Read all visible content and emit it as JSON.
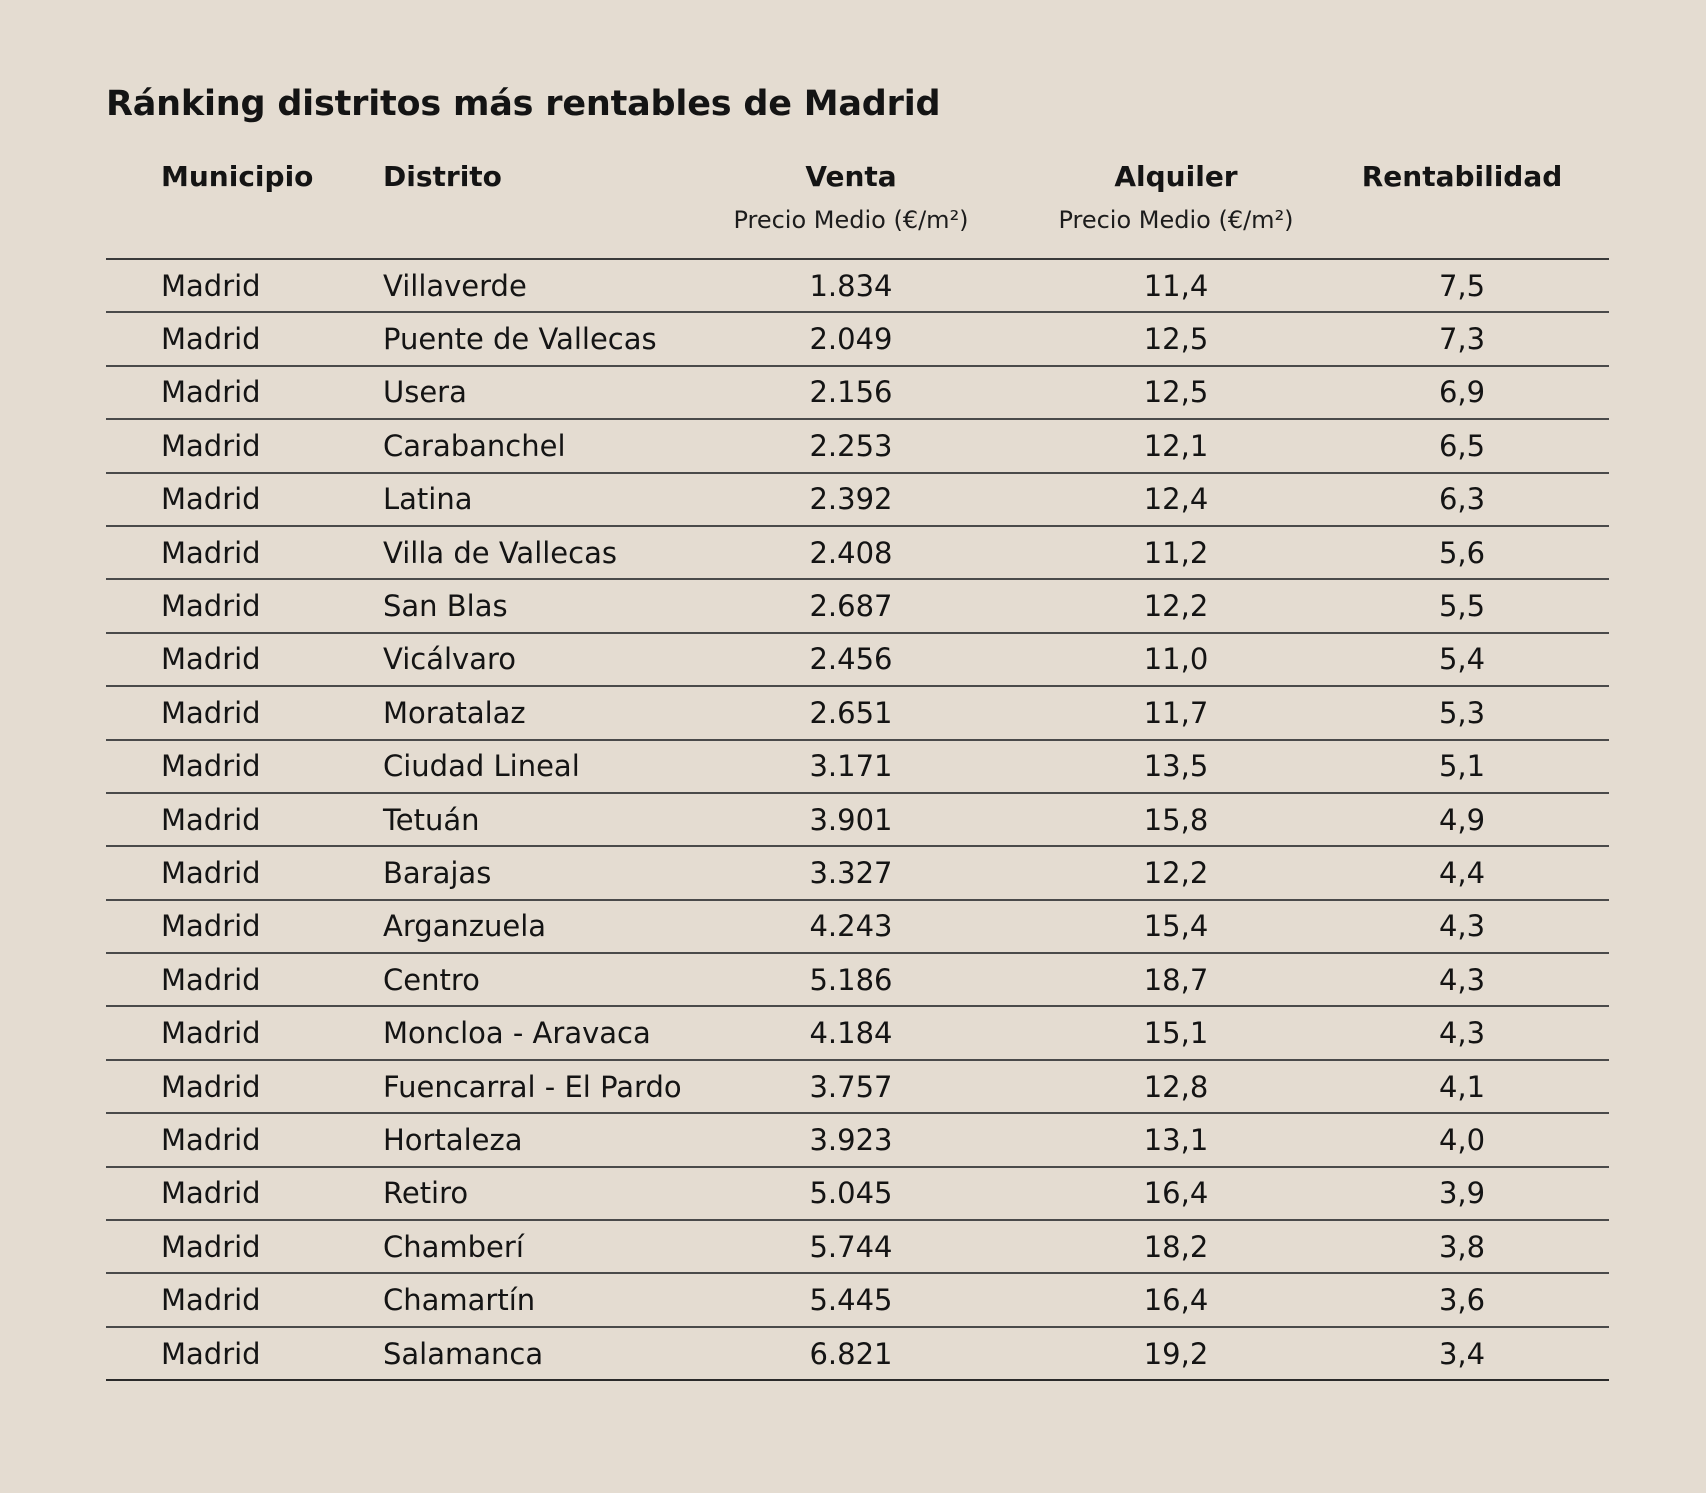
{
  "title": "Ránking distritos más rentables de Madrid",
  "headers": {
    "municipio": "Municipio",
    "distrito": "Distrito",
    "venta": "Venta",
    "venta_sub": "Precio Medio (€/m²)",
    "alquiler": "Alquiler",
    "alquiler_sub": "Precio Medio (€/m²)",
    "rentabilidad": "Rentabilidad"
  },
  "rows": [
    {
      "municipio": "Madrid",
      "distrito": "Villaverde",
      "venta": "1.834",
      "alquiler": "11,4",
      "rentabilidad": "7,5"
    },
    {
      "municipio": "Madrid",
      "distrito": "Puente de Vallecas",
      "venta": "2.049",
      "alquiler": "12,5",
      "rentabilidad": "7,3"
    },
    {
      "municipio": "Madrid",
      "distrito": "Usera",
      "venta": "2.156",
      "alquiler": "12,5",
      "rentabilidad": "6,9"
    },
    {
      "municipio": "Madrid",
      "distrito": "Carabanchel",
      "venta": "2.253",
      "alquiler": "12,1",
      "rentabilidad": "6,5"
    },
    {
      "municipio": "Madrid",
      "distrito": "Latina",
      "venta": "2.392",
      "alquiler": "12,4",
      "rentabilidad": "6,3"
    },
    {
      "municipio": "Madrid",
      "distrito": "Villa de Vallecas",
      "venta": "2.408",
      "alquiler": "11,2",
      "rentabilidad": "5,6"
    },
    {
      "municipio": "Madrid",
      "distrito": "San Blas",
      "venta": "2.687",
      "alquiler": "12,2",
      "rentabilidad": "5,5"
    },
    {
      "municipio": "Madrid",
      "distrito": "Vicálvaro",
      "venta": "2.456",
      "alquiler": "11,0",
      "rentabilidad": "5,4"
    },
    {
      "municipio": "Madrid",
      "distrito": "Moratalaz",
      "venta": "2.651",
      "alquiler": "11,7",
      "rentabilidad": "5,3"
    },
    {
      "municipio": "Madrid",
      "distrito": "Ciudad Lineal",
      "venta": "3.171",
      "alquiler": "13,5",
      "rentabilidad": "5,1"
    },
    {
      "municipio": "Madrid",
      "distrito": "Tetuán",
      "venta": "3.901",
      "alquiler": "15,8",
      "rentabilidad": "4,9"
    },
    {
      "municipio": "Madrid",
      "distrito": "Barajas",
      "venta": "3.327",
      "alquiler": "12,2",
      "rentabilidad": "4,4"
    },
    {
      "municipio": "Madrid",
      "distrito": "Arganzuela",
      "venta": "4.243",
      "alquiler": "15,4",
      "rentabilidad": "4,3"
    },
    {
      "municipio": "Madrid",
      "distrito": "Centro",
      "venta": "5.186",
      "alquiler": "18,7",
      "rentabilidad": "4,3"
    },
    {
      "municipio": "Madrid",
      "distrito": "Moncloa - Aravaca",
      "venta": "4.184",
      "alquiler": "15,1",
      "rentabilidad": "4,3"
    },
    {
      "municipio": "Madrid",
      "distrito": "Fuencarral - El Pardo",
      "venta": "3.757",
      "alquiler": "12,8",
      "rentabilidad": "4,1"
    },
    {
      "municipio": "Madrid",
      "distrito": "Hortaleza",
      "venta": "3.923",
      "alquiler": "13,1",
      "rentabilidad": "4,0"
    },
    {
      "municipio": "Madrid",
      "distrito": "Retiro",
      "venta": "5.045",
      "alquiler": "16,4",
      "rentabilidad": "3,9"
    },
    {
      "municipio": "Madrid",
      "distrito": "Chamberí",
      "venta": "5.744",
      "alquiler": "18,2",
      "rentabilidad": "3,8"
    },
    {
      "municipio": "Madrid",
      "distrito": "Chamartín",
      "venta": "5.445",
      "alquiler": "16,4",
      "rentabilidad": "3,6"
    },
    {
      "municipio": "Madrid",
      "distrito": "Salamanca",
      "venta": "6.821",
      "alquiler": "19,2",
      "rentabilidad": "3,4"
    }
  ]
}
